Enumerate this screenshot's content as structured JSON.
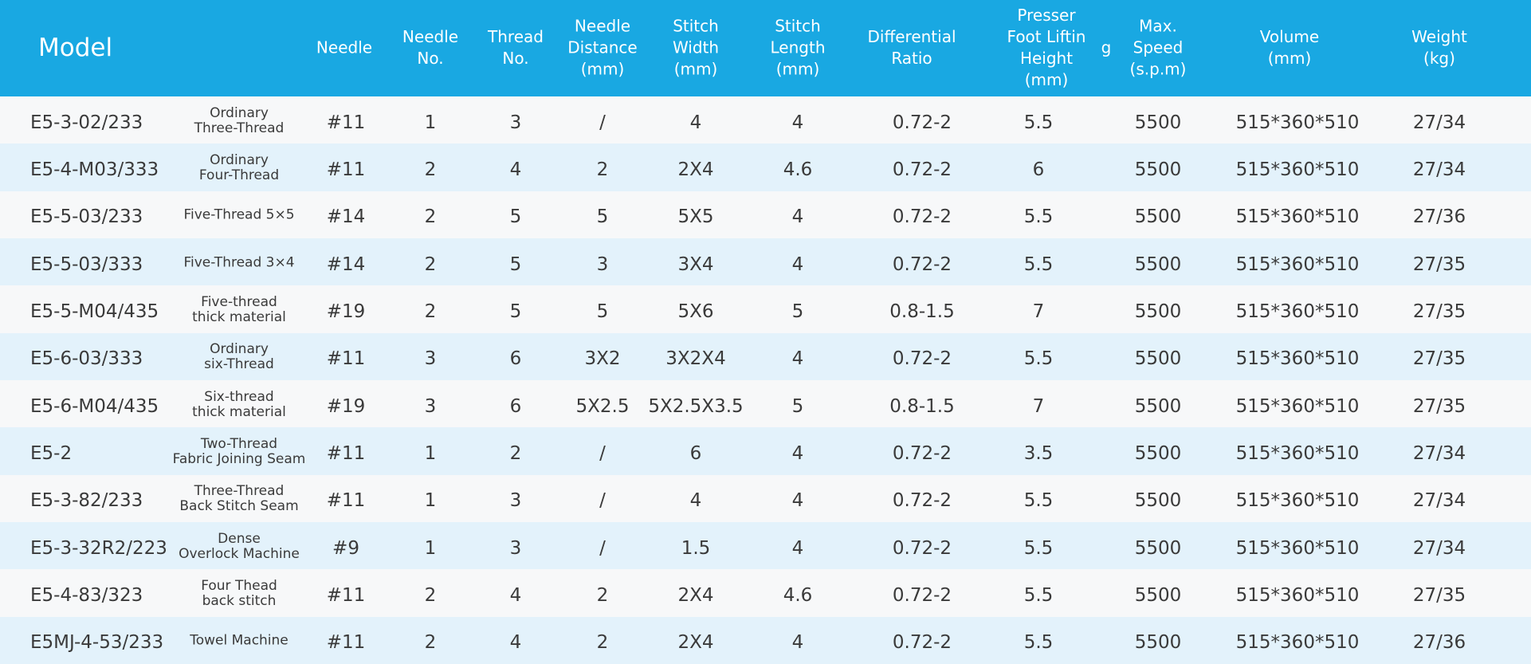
{
  "header": {
    "columns": [
      [
        "Model"
      ],
      [
        "Needle"
      ],
      [
        "Needle",
        "No."
      ],
      [
        "Thread",
        "No."
      ],
      [
        "Needle",
        "Distance",
        "(mm)"
      ],
      [
        "Stitch",
        "Width",
        "(mm)"
      ],
      [
        "Stitch",
        "Length",
        "(mm)"
      ],
      [
        "Differential",
        "Ratio"
      ],
      [
        "Presser",
        "Foot Liftin",
        "Height",
        "(mm)"
      ],
      [
        "g"
      ],
      [
        "Max.",
        "Speed",
        "(s.p.m)"
      ],
      [
        "Volume",
        "(mm)"
      ],
      [
        "Weight",
        "(kg)"
      ]
    ]
  },
  "table": {
    "rows": [
      {
        "model": "E5-3-02/233",
        "description": [
          "Ordinary",
          "Three-Thread"
        ],
        "cells": [
          "#11",
          "1",
          "3",
          "/",
          "4",
          "4",
          "0.72-2",
          "5.5",
          "5500",
          "515*360*510",
          "27/34"
        ]
      },
      {
        "model": "E5-4-M03/333",
        "description": [
          "Ordinary",
          "Four-Thread"
        ],
        "cells": [
          "#11",
          "2",
          "4",
          "2",
          "2X4",
          "4.6",
          "0.72-2",
          "6",
          "5500",
          "515*360*510",
          "27/34"
        ]
      },
      {
        "model": "E5-5-03/233",
        "description": [
          "Five-Thread  5×5"
        ],
        "cells": [
          "#14",
          "2",
          "5",
          "5",
          "5X5",
          "4",
          "0.72-2",
          "5.5",
          "5500",
          "515*360*510",
          "27/36"
        ]
      },
      {
        "model": "E5-5-03/333",
        "description": [
          "Five-Thread  3×4"
        ],
        "cells": [
          "#14",
          "2",
          "5",
          "3",
          "3X4",
          "4",
          "0.72-2",
          "5.5",
          "5500",
          "515*360*510",
          "27/35"
        ]
      },
      {
        "model": "E5-5-M04/435",
        "description": [
          "Five-thread",
          "thick material"
        ],
        "cells": [
          "#19",
          "2",
          "5",
          "5",
          "5X6",
          "5",
          "0.8-1.5",
          "7",
          "5500",
          "515*360*510",
          "27/35"
        ]
      },
      {
        "model": "E5-6-03/333",
        "description": [
          "Ordinary",
          "six-Thread"
        ],
        "cells": [
          "#11",
          "3",
          "6",
          "3X2",
          "3X2X4",
          "4",
          "0.72-2",
          "5.5",
          "5500",
          "515*360*510",
          "27/35"
        ]
      },
      {
        "model": "E5-6-M04/435",
        "description": [
          "Six-thread",
          "thick material"
        ],
        "cells": [
          "#19",
          "3",
          "6",
          "5X2.5",
          "5X2.5X3.5",
          "5",
          "0.8-1.5",
          "7",
          "5500",
          "515*360*510",
          "27/35"
        ]
      },
      {
        "model": "E5-2",
        "description": [
          "Two-Thread",
          "Fabric Joining Seam"
        ],
        "cells": [
          "#11",
          "1",
          "2",
          "/",
          "6",
          "4",
          "0.72-2",
          "3.5",
          "5500",
          "515*360*510",
          "27/34"
        ]
      },
      {
        "model": "E5-3-82/233",
        "description": [
          "Three-Thread",
          "Back Stitch Seam"
        ],
        "cells": [
          "#11",
          "1",
          "3",
          "/",
          "4",
          "4",
          "0.72-2",
          "5.5",
          "5500",
          "515*360*510",
          "27/34"
        ]
      },
      {
        "model": "E5-3-32R2/223",
        "description": [
          "Dense",
          "Overlock Machine"
        ],
        "cells": [
          "#9",
          "1",
          "3",
          "/",
          "1.5",
          "4",
          "0.72-2",
          "5.5",
          "5500",
          "515*360*510",
          "27/34"
        ]
      },
      {
        "model": "E5-4-83/323",
        "description": [
          "Four Thead",
          "back stitch"
        ],
        "cells": [
          "#11",
          "2",
          "4",
          "2",
          "2X4",
          "4.6",
          "0.72-2",
          "5.5",
          "5500",
          "515*360*510",
          "27/35"
        ]
      },
      {
        "model": "E5MJ-4-53/233",
        "description": [
          "Towel Machine"
        ],
        "cells": [
          "#11",
          "2",
          "4",
          "2",
          "2X4",
          "4",
          "0.72-2",
          "5.5",
          "5500",
          "515*360*510",
          "27/36"
        ]
      }
    ]
  }
}
